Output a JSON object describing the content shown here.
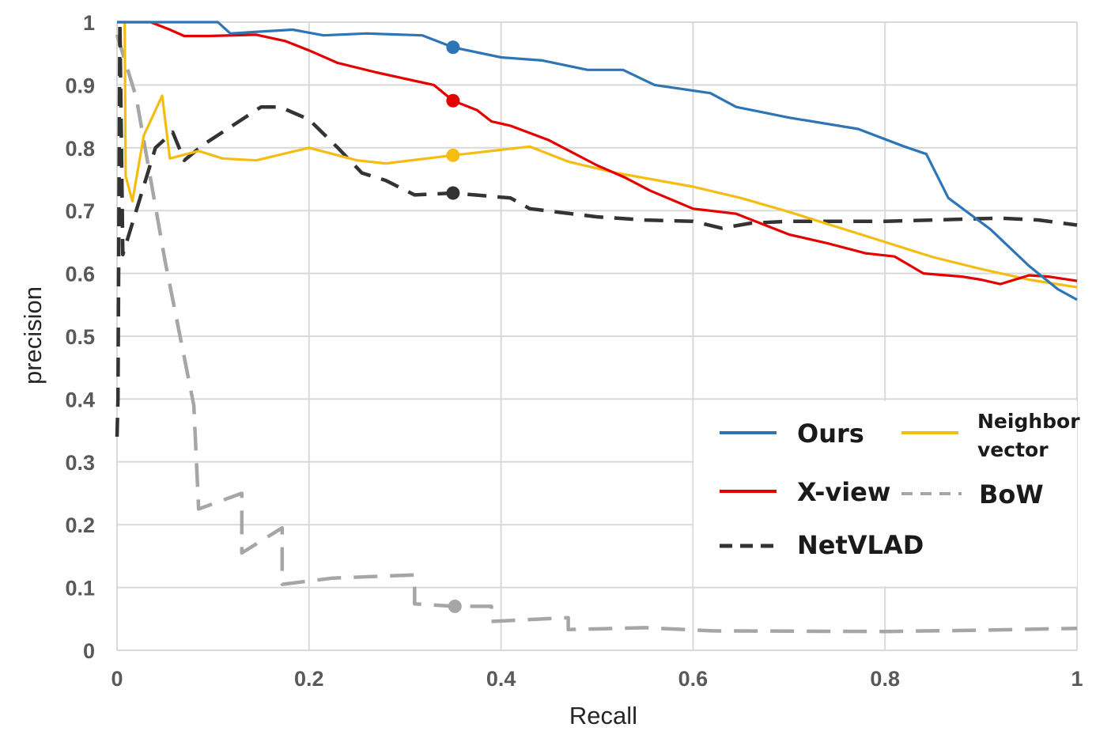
{
  "chart_data": {
    "type": "line",
    "title": "",
    "xlabel": "Recall",
    "ylabel": "precision",
    "xlim": [
      0,
      1
    ],
    "ylim": [
      0,
      1
    ],
    "grid": true,
    "legend_position": "bottom-right",
    "x_ticks": [
      "0",
      "0.2",
      "0.4",
      "0.6",
      "0.8",
      "1"
    ],
    "y_ticks": [
      "0",
      "0.1",
      "0.2",
      "0.3",
      "0.4",
      "0.5",
      "0.6",
      "0.7",
      "0.8",
      "0.9",
      "1"
    ],
    "series": [
      {
        "name": "Ours",
        "color": "#2e75b6",
        "style": "solid",
        "marker": {
          "x": 0.35,
          "y": 0.96
        },
        "points": [
          [
            0,
            1
          ],
          [
            0.105,
            1
          ],
          [
            0.118,
            0.982
          ],
          [
            0.15,
            0.985
          ],
          [
            0.183,
            0.988
          ],
          [
            0.215,
            0.979
          ],
          [
            0.26,
            0.982
          ],
          [
            0.318,
            0.979
          ],
          [
            0.35,
            0.96
          ],
          [
            0.4,
            0.944
          ],
          [
            0.443,
            0.939
          ],
          [
            0.49,
            0.924
          ],
          [
            0.527,
            0.924
          ],
          [
            0.56,
            0.9
          ],
          [
            0.618,
            0.887
          ],
          [
            0.645,
            0.865
          ],
          [
            0.7,
            0.848
          ],
          [
            0.772,
            0.83
          ],
          [
            0.82,
            0.802
          ],
          [
            0.843,
            0.79
          ],
          [
            0.866,
            0.72
          ],
          [
            0.91,
            0.67
          ],
          [
            0.95,
            0.612
          ],
          [
            0.98,
            0.575
          ],
          [
            1.0,
            0.558
          ]
        ]
      },
      {
        "name": "X-view",
        "color": "#e50000",
        "style": "solid",
        "marker": {
          "x": 0.35,
          "y": 0.875
        },
        "points": [
          [
            0,
            1
          ],
          [
            0.035,
            1
          ],
          [
            0.055,
            0.988
          ],
          [
            0.07,
            0.978
          ],
          [
            0.095,
            0.978
          ],
          [
            0.145,
            0.98
          ],
          [
            0.175,
            0.97
          ],
          [
            0.2,
            0.955
          ],
          [
            0.23,
            0.935
          ],
          [
            0.27,
            0.92
          ],
          [
            0.3,
            0.91
          ],
          [
            0.33,
            0.9
          ],
          [
            0.35,
            0.875
          ],
          [
            0.375,
            0.86
          ],
          [
            0.39,
            0.842
          ],
          [
            0.41,
            0.835
          ],
          [
            0.45,
            0.812
          ],
          [
            0.5,
            0.772
          ],
          [
            0.53,
            0.752
          ],
          [
            0.555,
            0.732
          ],
          [
            0.6,
            0.703
          ],
          [
            0.645,
            0.695
          ],
          [
            0.7,
            0.662
          ],
          [
            0.74,
            0.648
          ],
          [
            0.78,
            0.632
          ],
          [
            0.81,
            0.627
          ],
          [
            0.84,
            0.6
          ],
          [
            0.88,
            0.595
          ],
          [
            0.9,
            0.59
          ],
          [
            0.92,
            0.583
          ],
          [
            0.95,
            0.597
          ],
          [
            0.97,
            0.595
          ],
          [
            1.0,
            0.588
          ]
        ]
      },
      {
        "name": "NetVLAD",
        "color": "#333333",
        "style": "dashed",
        "marker": {
          "x": 0.35,
          "y": 0.728
        },
        "points": [
          [
            0,
            0.34
          ],
          [
            0.001,
            0.4
          ],
          [
            0.003,
            1.0
          ],
          [
            0.006,
            0.63
          ],
          [
            0.02,
            0.7
          ],
          [
            0.04,
            0.8
          ],
          [
            0.058,
            0.825
          ],
          [
            0.07,
            0.78
          ],
          [
            0.09,
            0.805
          ],
          [
            0.13,
            0.845
          ],
          [
            0.15,
            0.865
          ],
          [
            0.17,
            0.865
          ],
          [
            0.2,
            0.845
          ],
          [
            0.23,
            0.8
          ],
          [
            0.255,
            0.76
          ],
          [
            0.28,
            0.748
          ],
          [
            0.31,
            0.725
          ],
          [
            0.35,
            0.728
          ],
          [
            0.41,
            0.72
          ],
          [
            0.43,
            0.703
          ],
          [
            0.5,
            0.69
          ],
          [
            0.55,
            0.685
          ],
          [
            0.6,
            0.683
          ],
          [
            0.63,
            0.672
          ],
          [
            0.66,
            0.68
          ],
          [
            0.7,
            0.683
          ],
          [
            0.8,
            0.683
          ],
          [
            0.85,
            0.685
          ],
          [
            0.92,
            0.688
          ],
          [
            0.96,
            0.685
          ],
          [
            1.0,
            0.677
          ]
        ]
      },
      {
        "name": "Neighbor vector",
        "color": "#f5bd13",
        "style": "solid",
        "marker": {
          "x": 0.35,
          "y": 0.788
        },
        "points": [
          [
            0.008,
            1.0
          ],
          [
            0.009,
            0.755
          ],
          [
            0.016,
            0.715
          ],
          [
            0.028,
            0.82
          ],
          [
            0.047,
            0.883
          ],
          [
            0.055,
            0.783
          ],
          [
            0.085,
            0.795
          ],
          [
            0.11,
            0.783
          ],
          [
            0.145,
            0.78
          ],
          [
            0.2,
            0.8
          ],
          [
            0.25,
            0.78
          ],
          [
            0.28,
            0.775
          ],
          [
            0.35,
            0.788
          ],
          [
            0.43,
            0.802
          ],
          [
            0.47,
            0.778
          ],
          [
            0.52,
            0.76
          ],
          [
            0.6,
            0.738
          ],
          [
            0.65,
            0.72
          ],
          [
            0.7,
            0.698
          ],
          [
            0.8,
            0.65
          ],
          [
            0.85,
            0.626
          ],
          [
            0.9,
            0.607
          ],
          [
            0.95,
            0.59
          ],
          [
            1.0,
            0.578
          ]
        ]
      },
      {
        "name": "BoW",
        "color": "#a6a6a6",
        "style": "dashed",
        "marker": {
          "x": 0.352,
          "y": 0.07
        },
        "points": [
          [
            0,
            0.98
          ],
          [
            0.02,
            0.88
          ],
          [
            0.05,
            0.62
          ],
          [
            0.08,
            0.39
          ],
          [
            0.085,
            0.225
          ],
          [
            0.13,
            0.25
          ],
          [
            0.13,
            0.155
          ],
          [
            0.172,
            0.195
          ],
          [
            0.172,
            0.105
          ],
          [
            0.225,
            0.115
          ],
          [
            0.31,
            0.12
          ],
          [
            0.31,
            0.074
          ],
          [
            0.352,
            0.07
          ],
          [
            0.39,
            0.07
          ],
          [
            0.39,
            0.046
          ],
          [
            0.47,
            0.052
          ],
          [
            0.47,
            0.033
          ],
          [
            0.55,
            0.036
          ],
          [
            0.62,
            0.031
          ],
          [
            0.8,
            0.03
          ],
          [
            0.9,
            0.032
          ],
          [
            1.0,
            0.035
          ]
        ]
      }
    ]
  },
  "legend": {
    "ours": "Ours",
    "xview": "X-view",
    "netvlad": "NetVLAD",
    "neighbor_line1": "Neighbor",
    "neighbor_line2": "vector",
    "bow": "BoW"
  }
}
